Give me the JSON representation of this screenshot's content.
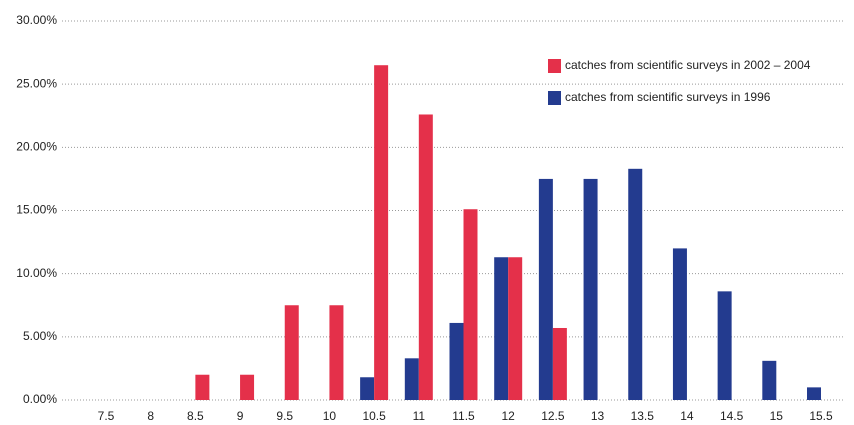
{
  "chart_data": {
    "type": "bar",
    "categories": [
      "7.5",
      "8",
      "8.5",
      "9",
      "9.5",
      "10",
      "10.5",
      "11",
      "11.5",
      "12",
      "12.5",
      "13",
      "13.5",
      "14",
      "14.5",
      "15",
      "15.5"
    ],
    "series": [
      {
        "name": "catches from scientific surveys in 1996",
        "color": "#233b8f",
        "values": [
          0,
          0,
          0,
          0,
          0,
          0,
          1.8,
          3.3,
          6.1,
          11.3,
          17.5,
          17.5,
          18.3,
          12.0,
          8.6,
          3.1,
          1.0
        ]
      },
      {
        "name": "catches from scientific surveys in 2002 – 2004",
        "color": "#e4304a",
        "values": [
          0,
          0,
          2.0,
          2.0,
          7.5,
          7.5,
          26.5,
          22.6,
          15.1,
          11.3,
          5.7,
          0,
          0,
          0,
          0,
          0,
          0
        ]
      }
    ],
    "ylim": [
      0,
      30
    ],
    "yticks": [
      {
        "value": 0,
        "label": "0.00%"
      },
      {
        "value": 5,
        "label": "5.00%"
      },
      {
        "value": 10,
        "label": "10.00%"
      },
      {
        "value": 15,
        "label": "15.00%"
      },
      {
        "value": 20,
        "label": "20.00%"
      },
      {
        "value": 25,
        "label": "25.00%"
      },
      {
        "value": 30,
        "label": "30.00%"
      }
    ],
    "grid": true
  }
}
